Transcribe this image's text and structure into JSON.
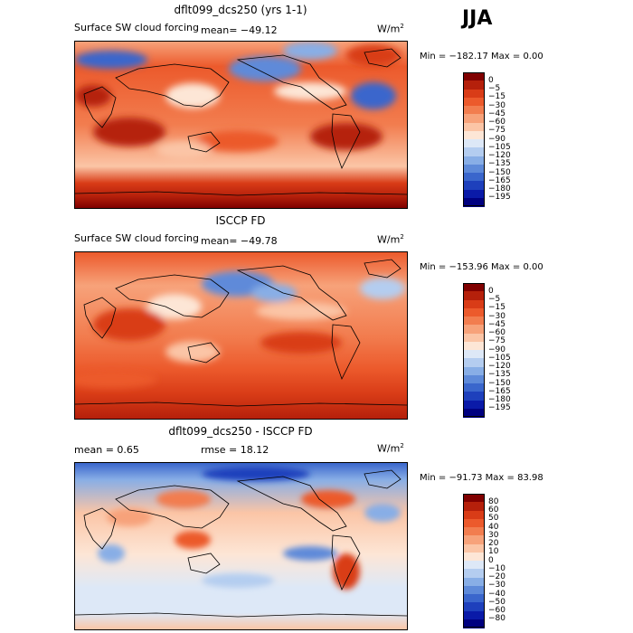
{
  "season": "JJA",
  "panels": [
    {
      "title": "dflt099_dcs250 (yrs 1-1)",
      "varname": "Surface SW cloud forcing",
      "stat_text": "mean= −49.12",
      "units": "W/m",
      "units_sup": "2",
      "minmax": "Min = −182.17 Max =    0.00",
      "colorbar": {
        "labels": [
          "0",
          "−5",
          "−15",
          "−30",
          "−45",
          "−60",
          "−75",
          "−90",
          "−105",
          "−120",
          "−135",
          "−150",
          "−165",
          "−180",
          "−195"
        ],
        "colors": [
          "#800000",
          "#b5200b",
          "#d93c17",
          "#ec5a2c",
          "#f27d4f",
          "#f7a27a",
          "#fbc5a6",
          "#fde6d6",
          "#dde8f7",
          "#b4cdf0",
          "#88aee6",
          "#5e8ad9",
          "#3a66cc",
          "#1e40bc",
          "#0a1aa8",
          "#000080"
        ]
      }
    },
    {
      "title": "ISCCP FD",
      "varname": "Surface SW cloud forcing",
      "stat_text": "mean= −49.78",
      "units": "W/m",
      "units_sup": "2",
      "minmax": "Min = −153.96 Max =    0.00",
      "colorbar": {
        "labels": [
          "0",
          "−5",
          "−15",
          "−30",
          "−45",
          "−60",
          "−75",
          "−90",
          "−105",
          "−120",
          "−135",
          "−150",
          "−165",
          "−180",
          "−195"
        ],
        "colors": [
          "#800000",
          "#b5200b",
          "#d93c17",
          "#ec5a2c",
          "#f27d4f",
          "#f7a27a",
          "#fbc5a6",
          "#fde6d6",
          "#dde8f7",
          "#b4cdf0",
          "#88aee6",
          "#5e8ad9",
          "#3a66cc",
          "#1e40bc",
          "#0a1aa8",
          "#000080"
        ]
      }
    },
    {
      "title": "dflt099_dcs250 - ISCCP FD",
      "stat_mean": "mean =    0.65",
      "stat_rmse": "rmse =   18.12",
      "units": "W/m",
      "units_sup": "2",
      "minmax": "Min = −91.73 Max =   83.98",
      "colorbar": {
        "labels": [
          "80",
          "60",
          "50",
          "40",
          "30",
          "20",
          "10",
          "0",
          "−10",
          "−20",
          "−30",
          "−40",
          "−50",
          "−60",
          "−80"
        ],
        "colors": [
          "#800000",
          "#b5200b",
          "#d93c17",
          "#ec5a2c",
          "#f27d4f",
          "#f7a27a",
          "#fbc5a6",
          "#fde6d6",
          "#dde8f7",
          "#b4cdf0",
          "#88aee6",
          "#5e8ad9",
          "#3a66cc",
          "#1e40bc",
          "#0a1aa8",
          "#000080"
        ]
      }
    }
  ],
  "chart_data": [
    {
      "type": "heatmap",
      "title": "dflt099_dcs250 (yrs 1-1)",
      "subtitle": "Surface SW cloud forcing",
      "units": "W/m2",
      "mean": -49.12,
      "min": -182.17,
      "max": 0.0,
      "levels": [
        0,
        -5,
        -15,
        -30,
        -45,
        -60,
        -75,
        -90,
        -105,
        -120,
        -135,
        -150,
        -165,
        -180,
        -195
      ],
      "domain": "global map, June-July-August (JJA)"
    },
    {
      "type": "heatmap",
      "title": "ISCCP FD",
      "subtitle": "Surface SW cloud forcing",
      "units": "W/m2",
      "mean": -49.78,
      "min": -153.96,
      "max": 0.0,
      "levels": [
        0,
        -5,
        -15,
        -30,
        -45,
        -60,
        -75,
        -90,
        -105,
        -120,
        -135,
        -150,
        -165,
        -180,
        -195
      ],
      "domain": "global map, June-July-August (JJA)"
    },
    {
      "type": "heatmap",
      "title": "dflt099_dcs250 - ISCCP FD",
      "units": "W/m2",
      "mean": 0.65,
      "rmse": 18.12,
      "min": -91.73,
      "max": 83.98,
      "levels": [
        80,
        60,
        50,
        40,
        30,
        20,
        10,
        0,
        -10,
        -20,
        -30,
        -40,
        -50,
        -60,
        -80
      ],
      "domain": "global map, June-July-August (JJA)"
    }
  ]
}
